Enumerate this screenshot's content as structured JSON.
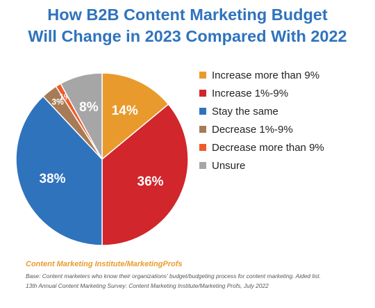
{
  "chart_data": {
    "type": "pie",
    "title_lines": [
      "How B2B Content Marketing Budget",
      "Will Change in 2023 Compared With 2022"
    ],
    "legend_position": "right",
    "slices": [
      {
        "label": "Increase more than 9%",
        "value": 14,
        "display": "14%",
        "color": "#e99a2c"
      },
      {
        "label": "Increase 1%-9%",
        "value": 36,
        "display": "36%",
        "color": "#d1262b"
      },
      {
        "label": "Stay the same",
        "value": 38,
        "display": "38%",
        "color": "#2f73bd"
      },
      {
        "label": "Decrease 1%-9%",
        "value": 3,
        "display": "3%",
        "color": "#a77b57"
      },
      {
        "label": "Decrease more than 9%",
        "value": 1,
        "display": "1%",
        "color": "#f05a28"
      },
      {
        "label": "Unsure",
        "value": 8,
        "display": "8%",
        "color": "#a6a6a6"
      }
    ]
  },
  "footer": {
    "source_title": "Content Marketing Institute/MarketingProfs",
    "base_note": "Base: Content marketers who know their organizations' budget/budgeting process for content marketing. Aided list.",
    "survey_note": "13th Annual Content Marketing Survey: Content Marketing Institute/Marketing Profs, July 2022"
  }
}
